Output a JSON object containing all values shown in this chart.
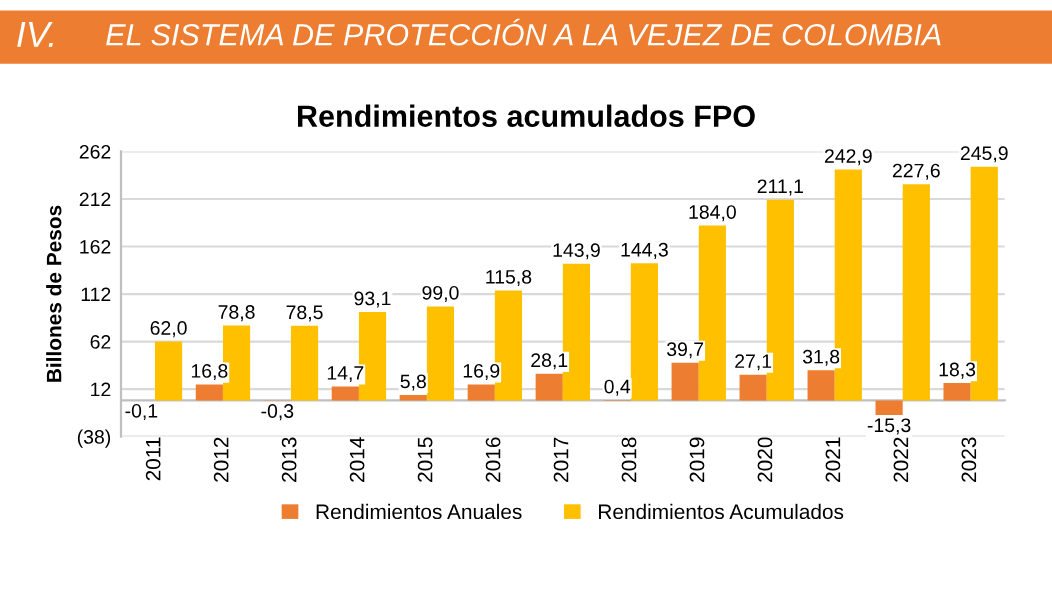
{
  "chart_data": {
    "type": "bar",
    "title": "Rendimientos acumulados FPO",
    "ylabel": "Billones de Pesos",
    "annotations": [
      "IV.",
      "EL SISTEMA DE PROTECCIÓN A LA VEJEZ DE COLOMBIA"
    ],
    "categories": [
      "2011",
      "2012",
      "2013",
      "2014",
      "2015",
      "2016",
      "2017",
      "2018",
      "2019",
      "2020",
      "2021",
      "2022",
      "2023"
    ],
    "series": [
      {
        "name": "Rendimientos Anuales",
        "color": "#ed7d31",
        "values": [
          -0.1,
          16.8,
          -0.3,
          14.7,
          5.8,
          16.9,
          28.1,
          0.4,
          39.7,
          27.1,
          31.8,
          -15.3,
          18.3
        ],
        "value_labels": [
          "-0,1",
          "16,8",
          "-0,3",
          "14,7",
          "5,8",
          "16,9",
          "28,1",
          "0,4",
          "39,7",
          "27,1",
          "31,8",
          "-15,3",
          "18,3"
        ]
      },
      {
        "name": "Rendimientos Acumulados",
        "color": "#ffc000",
        "values": [
          62.0,
          78.8,
          78.5,
          93.1,
          99.0,
          115.8,
          143.9,
          144.3,
          184.0,
          211.1,
          242.9,
          227.6,
          245.9
        ],
        "value_labels": [
          "62,0",
          "78,8",
          "78,5",
          "93,1",
          "99,0",
          "115,8",
          "143,9",
          "144,3",
          "184,0",
          "211,1",
          "242,9",
          "227,6",
          "245,9"
        ]
      }
    ],
    "ylim": [
      -38,
      262
    ],
    "yticks": [
      {
        "value": -38,
        "label": "(38)"
      },
      12,
      62,
      112,
      162,
      212,
      262
    ],
    "grid": "y",
    "legend": "bottom"
  }
}
